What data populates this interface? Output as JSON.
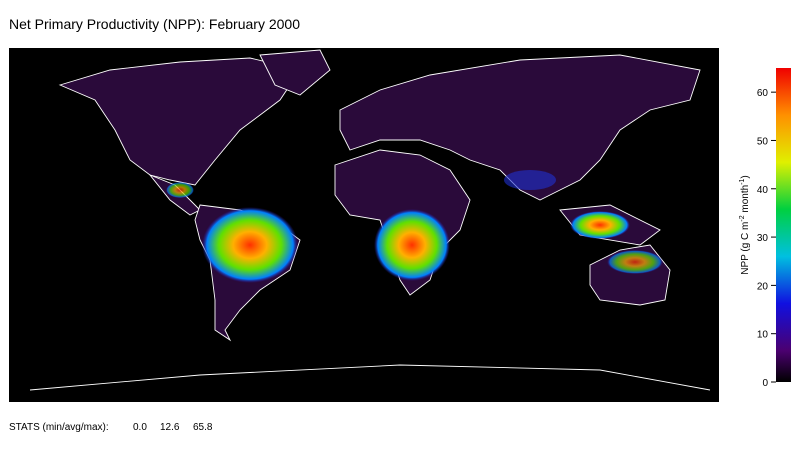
{
  "title": "Net Primary Productivity (NPP): February 2000",
  "colorbar": {
    "range": [
      0,
      65
    ],
    "ticks": [
      0,
      10,
      20,
      30,
      40,
      50,
      60
    ],
    "label_parts": [
      "NPP (g C m",
      "-2",
      " month",
      "-1",
      ")"
    ]
  },
  "stats": {
    "label": "STATS (min/avg/max):",
    "min": "0.0",
    "avg": "12.6",
    "max": "65.8"
  }
}
